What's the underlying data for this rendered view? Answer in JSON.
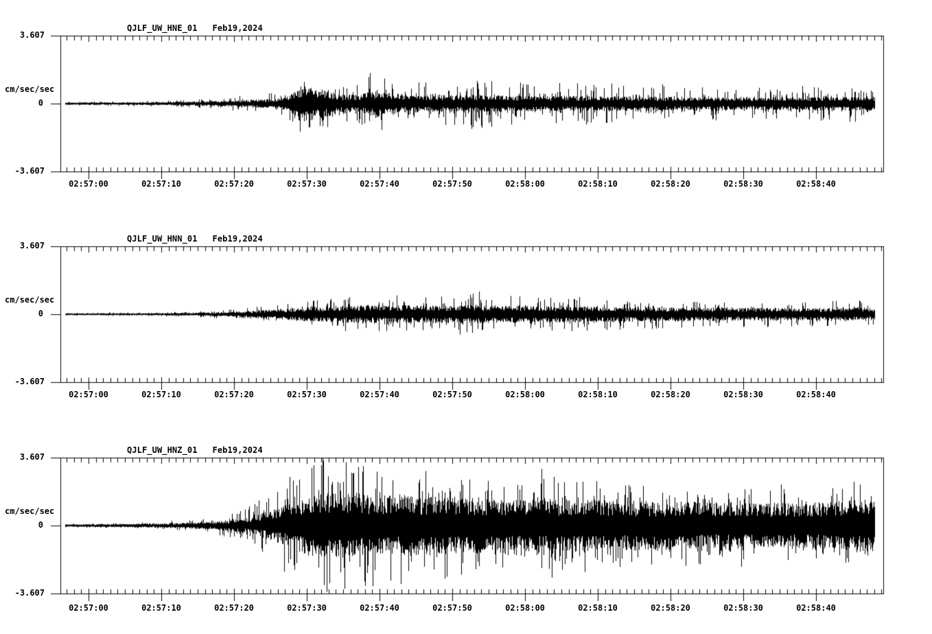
{
  "page": {
    "background": "#ffffff",
    "trace_color": "#000000"
  },
  "y_axis": {
    "max_label": "3.607",
    "zero_label": "0",
    "min_label": "-3.607",
    "unit": "cm/sec/sec",
    "ylim": [
      -3.607,
      3.607
    ]
  },
  "time_axis": {
    "major_tick_interval_sec": 10,
    "minor_tick_interval_sec": 1,
    "major_ticks": [
      {
        "t": 0,
        "label": "02:57:00"
      },
      {
        "t": 10,
        "label": "02:57:10"
      },
      {
        "t": 20,
        "label": "02:57:20"
      },
      {
        "t": 30,
        "label": "02:57:30"
      },
      {
        "t": 40,
        "label": "02:57:40"
      },
      {
        "t": 50,
        "label": "02:57:50"
      },
      {
        "t": 60,
        "label": "02:58:00"
      },
      {
        "t": 70,
        "label": "02:58:10"
      },
      {
        "t": 80,
        "label": "02:58:20"
      },
      {
        "t": 90,
        "label": "02:58:30"
      },
      {
        "t": 100,
        "label": "02:58:40"
      }
    ],
    "axis_start_rel_sec": -3.9,
    "axis_end_rel_sec": 109.2,
    "trace_start_rel_sec": -3.2,
    "trace_end_rel_sec": 108.0
  },
  "chart_data": [
    {
      "type": "line",
      "kind": "seismogram",
      "title": "QJLF_UW_HNE_01   Feb19,2024",
      "station": "QJLF",
      "network": "UW",
      "channel": "HNE",
      "location": "01",
      "date": "Feb19,2024",
      "ylabel": "cm/sec/sec",
      "ylim": [
        -3.607,
        3.607
      ],
      "seed": 11,
      "envelope": {
        "t": [
          -3.2,
          0,
          8,
          14,
          18,
          21,
          24,
          26.5,
          28.5,
          29.5,
          31,
          32.5,
          34,
          36,
          38,
          39.5,
          41,
          43,
          46,
          50,
          54,
          58,
          62,
          68,
          75,
          82,
          90,
          97,
          103,
          106,
          108
        ],
        "band": [
          0.05,
          0.05,
          0.06,
          0.08,
          0.11,
          0.14,
          0.17,
          0.22,
          0.45,
          0.7,
          0.65,
          0.55,
          0.38,
          0.35,
          0.42,
          0.55,
          0.45,
          0.36,
          0.34,
          0.33,
          0.35,
          0.32,
          0.3,
          0.3,
          0.28,
          0.27,
          0.26,
          0.26,
          0.27,
          0.3,
          0.28
        ],
        "peak": [
          0.1,
          0.11,
          0.14,
          0.2,
          0.3,
          0.45,
          0.5,
          0.65,
          1.2,
          1.8,
          1.65,
          1.4,
          1.0,
          1.0,
          1.3,
          1.75,
          1.4,
          1.05,
          1.1,
          1.2,
          1.4,
          1.2,
          1.1,
          1.15,
          1.05,
          0.95,
          0.85,
          0.9,
          0.95,
          1.05,
          0.85
        ]
      }
    },
    {
      "type": "line",
      "kind": "seismogram",
      "title": "QJLF_UW_HNN_01   Feb19,2024",
      "station": "QJLF",
      "network": "UW",
      "channel": "HNN",
      "location": "01",
      "date": "Feb19,2024",
      "ylabel": "cm/sec/sec",
      "ylim": [
        -3.607,
        3.607
      ],
      "seed": 23,
      "envelope": {
        "t": [
          -3.2,
          0,
          8,
          14,
          18,
          22,
          25,
          28,
          31,
          35,
          40,
          45,
          50,
          53,
          56,
          60,
          65,
          70,
          75,
          80,
          86,
          92,
          98,
          103,
          106.5,
          108
        ],
        "band": [
          0.035,
          0.04,
          0.045,
          0.06,
          0.09,
          0.13,
          0.18,
          0.24,
          0.3,
          0.34,
          0.36,
          0.35,
          0.35,
          0.36,
          0.34,
          0.33,
          0.32,
          0.31,
          0.29,
          0.27,
          0.26,
          0.25,
          0.24,
          0.25,
          0.27,
          0.25
        ],
        "peak": [
          0.07,
          0.08,
          0.1,
          0.14,
          0.22,
          0.35,
          0.5,
          0.65,
          0.8,
          0.9,
          0.95,
          0.9,
          1.0,
          1.2,
          0.95,
          1.0,
          0.9,
          0.95,
          0.85,
          0.8,
          0.72,
          0.68,
          0.65,
          0.7,
          0.8,
          0.7
        ]
      }
    },
    {
      "type": "line",
      "kind": "seismogram",
      "title": "QJLF_UW_HNZ_01   Feb19,2024",
      "station": "QJLF",
      "network": "UW",
      "channel": "HNZ",
      "location": "01",
      "date": "Feb19,2024",
      "ylabel": "cm/sec/sec",
      "ylim": [
        -3.607,
        3.607
      ],
      "seed": 37,
      "envelope": {
        "t": [
          -3.2,
          0,
          6,
          11,
          15,
          18,
          21,
          23.5,
          26,
          28,
          30,
          32,
          34,
          36,
          38,
          41,
          44,
          47,
          51,
          55,
          59,
          62,
          64,
          67,
          71,
          76,
          81,
          86,
          91,
          96,
          101,
          104,
          106.5,
          108
        ],
        "band": [
          0.05,
          0.06,
          0.07,
          0.09,
          0.13,
          0.18,
          0.28,
          0.45,
          0.7,
          0.95,
          1.15,
          1.25,
          1.3,
          1.25,
          1.2,
          1.18,
          1.15,
          1.15,
          1.1,
          1.1,
          1.08,
          1.12,
          1.05,
          1.02,
          1.0,
          0.98,
          0.95,
          0.92,
          0.9,
          0.9,
          0.92,
          0.98,
          1.05,
          0.9
        ],
        "peak": [
          0.1,
          0.12,
          0.16,
          0.22,
          0.32,
          0.5,
          0.85,
          1.4,
          2.2,
          2.9,
          3.55,
          3.6,
          3.6,
          3.55,
          3.4,
          3.3,
          3.1,
          2.9,
          2.7,
          2.6,
          2.5,
          3.3,
          2.6,
          2.4,
          2.3,
          2.2,
          2.1,
          2.0,
          1.95,
          1.95,
          2.0,
          2.15,
          2.3,
          1.8
        ]
      }
    }
  ]
}
